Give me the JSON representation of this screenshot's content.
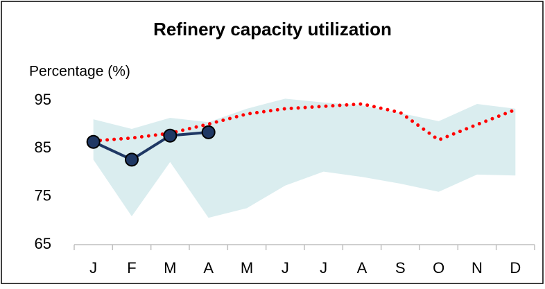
{
  "chart_data": {
    "type": "line",
    "title": "Refinery capacity utilization",
    "y_label": "Percentage (%)",
    "categories": [
      "J",
      "F",
      "M",
      "A",
      "M",
      "J",
      "J",
      "A",
      "S",
      "O",
      "N",
      "D"
    ],
    "ylim": [
      65,
      100
    ],
    "yticks": [
      65,
      75,
      85,
      95
    ],
    "range": {
      "color": "#daedef",
      "upper": [
        91.1,
        89.1,
        91.4,
        90.5,
        93.3,
        95.4,
        94.6,
        94.0,
        92.4,
        90.7,
        94.3,
        93.3
      ],
      "lower": [
        82.7,
        70.9,
        82.2,
        70.6,
        72.6,
        77.3,
        80.2,
        79.1,
        77.7,
        76.0,
        79.6,
        79.4
      ]
    },
    "series": [
      {
        "color": "#ff0000",
        "style": "dotted",
        "values": [
          86.6,
          87.2,
          88.2,
          90.1,
          92.2,
          93.3,
          93.8,
          94.3,
          92.5,
          86.8,
          90.0,
          93.1
        ]
      },
      {
        "color": "#1f3864",
        "style": "solid",
        "markers": true,
        "values": [
          86.4,
          82.7,
          87.7,
          88.4,
          null,
          null,
          null,
          null,
          null,
          null,
          null,
          null
        ]
      }
    ]
  }
}
